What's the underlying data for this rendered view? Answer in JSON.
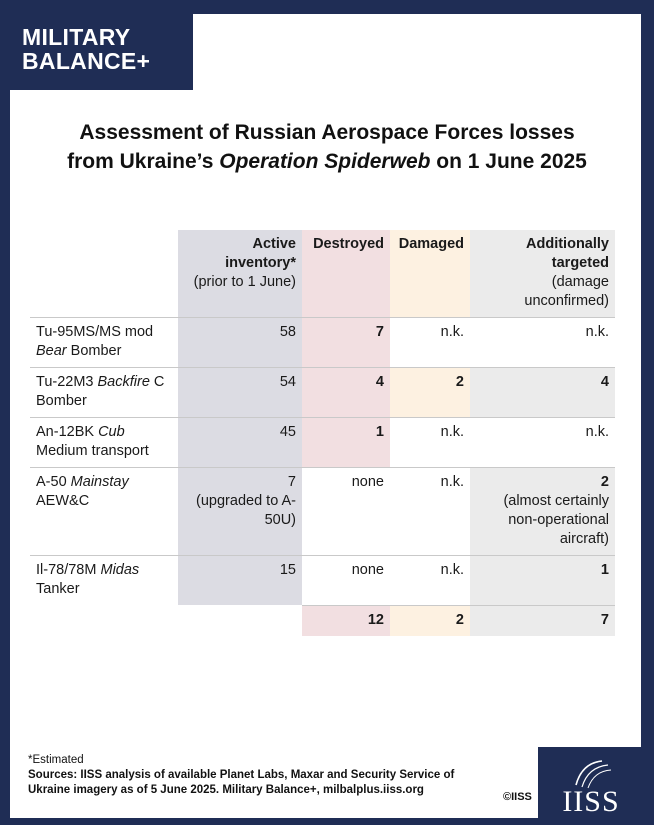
{
  "brand": {
    "line1": "MILITARY",
    "line2": "BALANCE+"
  },
  "title": {
    "line1": "Assessment of Russian Aerospace Forces losses",
    "line2_pre": "from Ukraine’s ",
    "line2_em": "Operation Spiderweb",
    "line2_post": " on 1 June 2025"
  },
  "table": {
    "headers": {
      "active": "Active inventory*",
      "active_sub": "(prior to 1 June)",
      "destroyed": "Destroyed",
      "damaged": "Damaged",
      "additional": "Additionally targeted",
      "additional_sub": "(damage unconfirmed)"
    },
    "rows": [
      {
        "name_pre": "Tu-95MS/MS mod ",
        "name_em": "Bear",
        "name_post": " Bomber",
        "active": "58",
        "destroyed": "7",
        "damaged": "n.k.",
        "additional": "n.k."
      },
      {
        "name_pre": "Tu-22M3 ",
        "name_em": "Backfire",
        "name_post": " C Bomber",
        "active": "54",
        "destroyed": "4",
        "damaged": "2",
        "additional": "4"
      },
      {
        "name_pre": "An-12BK ",
        "name_em": "Cub",
        "name_post": " Medium transport",
        "active": "45",
        "destroyed": "1",
        "damaged": "n.k.",
        "additional": "n.k."
      },
      {
        "name_pre": "A-50 ",
        "name_em": "Mainstay",
        "name_post": " AEW&C",
        "active": "7",
        "active_note": "(upgraded to A-50U)",
        "destroyed": "none",
        "damaged": "n.k.",
        "additional": "2",
        "additional_note": "(almost certainly non-operational aircraft)"
      },
      {
        "name_pre": "Il-78/78M ",
        "name_em": "Midas",
        "name_post": " Tanker",
        "active": "15",
        "destroyed": "none",
        "damaged": "n.k.",
        "additional": "1"
      }
    ],
    "totals": {
      "destroyed": "12",
      "damaged": "2",
      "additional": "7"
    }
  },
  "footer": {
    "note": "*Estimated",
    "sources": "Sources: IISS analysis of available Planet Labs, Maxar and Security Service of Ukraine imagery as of 5 June 2025. Military Balance+, milbalplus.iiss.org",
    "copyright": "©IISS"
  },
  "logo": {
    "text": "IISS",
    "icon": "iiss-globe-icon"
  },
  "colors": {
    "navy": "#1f2d55",
    "active_col": "#dcdce3",
    "destroyed_col": "#f2dfe1",
    "damaged_col": "#fdf1e1",
    "additional_col": "#ebebeb"
  }
}
